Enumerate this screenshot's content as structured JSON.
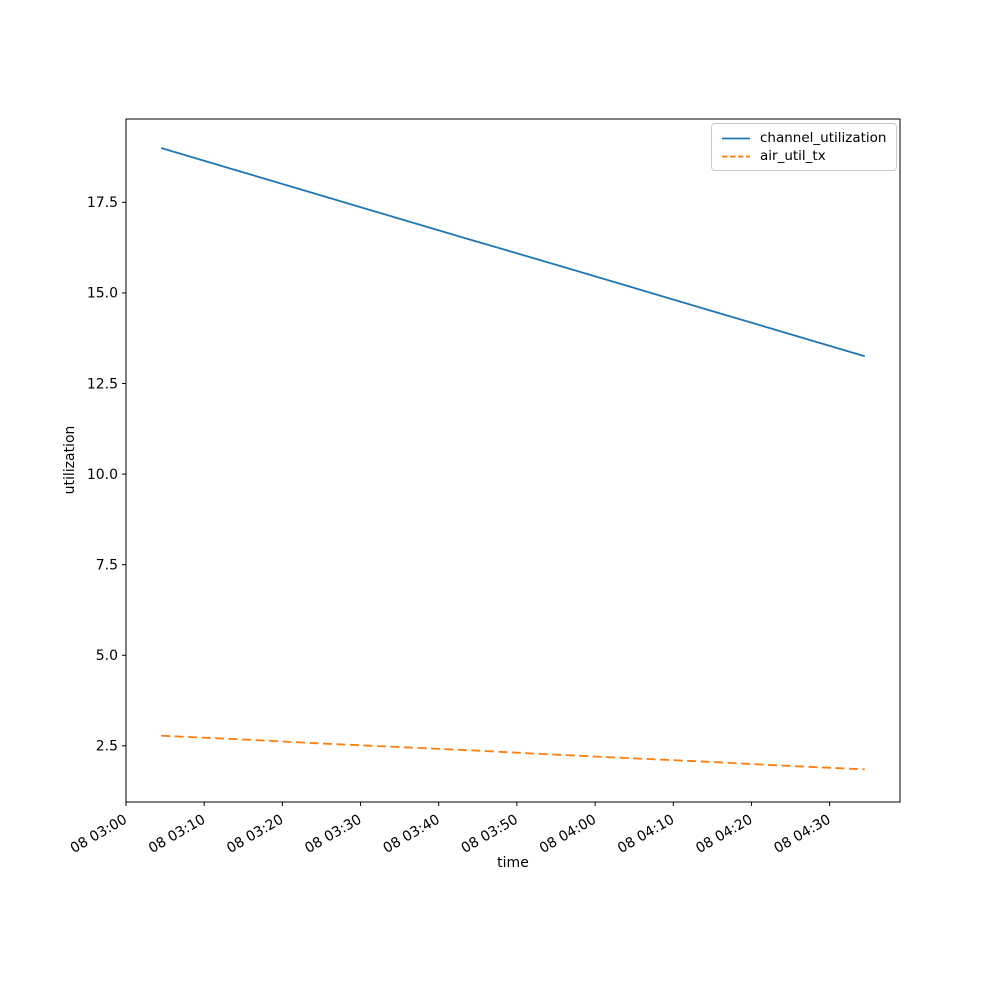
{
  "chart_data": {
    "type": "line",
    "title": "",
    "x_axis": {
      "label": "time",
      "unit": "minutes since 08 00:00",
      "tick_labels": [
        "08 03:00",
        "08 03:10",
        "08 03:20",
        "08 03:30",
        "08 03:40",
        "08 03:50",
        "08 04:00",
        "08 04:10",
        "08 04:20",
        "08 04:30"
      ],
      "tick_minutes": [
        180,
        190,
        200,
        210,
        220,
        230,
        240,
        250,
        260,
        270
      ],
      "range_minutes": [
        180,
        279
      ]
    },
    "y_axis": {
      "label": "utilization",
      "tick_labels": [
        "2.5",
        "5.0",
        "7.5",
        "10.0",
        "12.5",
        "15.0",
        "17.5"
      ],
      "tick_values": [
        2.5,
        5.0,
        7.5,
        10.0,
        12.5,
        15.0,
        17.5
      ],
      "range": [
        0.95,
        19.8
      ]
    },
    "legend": {
      "position": "upper right"
    },
    "grid": false,
    "series": [
      {
        "name": "channel_utilization",
        "color": "#1f77b4",
        "line_style": "solid",
        "x_minutes": [
          184.5,
          194.5,
          204.5,
          214.5,
          224.5,
          234.5,
          244.5,
          254.5,
          264.5,
          274.5
        ],
        "values": [
          19.0,
          18.36,
          17.72,
          17.08,
          16.44,
          15.81,
          15.17,
          14.53,
          13.89,
          13.25
        ]
      },
      {
        "name": "air_util_tx",
        "color": "#ff7f0e",
        "line_style": "dashed",
        "x_minutes": [
          184.5,
          194.5,
          204.5,
          214.5,
          224.5,
          234.5,
          244.5,
          254.5,
          264.5,
          274.5
        ],
        "values": [
          2.78,
          2.68,
          2.57,
          2.47,
          2.37,
          2.26,
          2.16,
          2.06,
          1.95,
          1.85
        ]
      }
    ]
  }
}
